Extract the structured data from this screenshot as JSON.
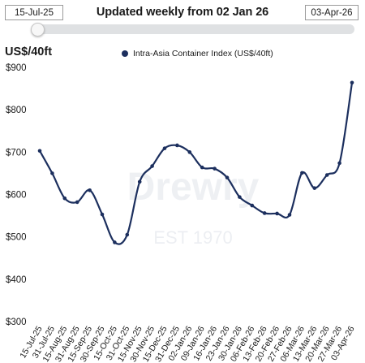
{
  "header": {
    "range_start": "15-Jul-25",
    "range_end": "03-Apr-26",
    "title": "Updated weekly from 02 Jan 26"
  },
  "watermark": {
    "brand": "Drewry",
    "est": "EST 1970"
  },
  "colors": {
    "series": "#1c2f5e",
    "track": "#dfe1e3"
  },
  "chart_data": {
    "type": "line",
    "ylabel": "US$/40ft",
    "ylim": [
      300,
      900
    ],
    "yticks": [
      300,
      400,
      500,
      600,
      700,
      800,
      900
    ],
    "ytick_labels": [
      "$300",
      "$400",
      "$500",
      "$600",
      "$700",
      "$800",
      "$900"
    ],
    "grid": false,
    "legend": "top",
    "categories": [
      "15-Jul-25",
      "31-Jul-25",
      "15-Aug-25",
      "31-Aug-25",
      "15-Sep-25",
      "30-Sep-25",
      "15-Oct-25",
      "31-Oct-25",
      "15-Nov-25",
      "30-Nov-25",
      "15-Dec-25",
      "31-Dec-25",
      "02-Jan-26",
      "09-Jan-26",
      "16-Jan-26",
      "23-Jan-26",
      "30-Jan-26",
      "06-Feb-26",
      "13-Feb-26",
      "20-Feb-26",
      "27-Feb-26",
      "06-Mar-26",
      "13-Mar-26",
      "20-Mar-26",
      "27-Mar-26",
      "03-Apr-26"
    ],
    "series": [
      {
        "name": "Intra-Asia Container Index (US$/40ft)",
        "values": [
          703,
          650,
          591,
          582,
          610,
          553,
          487,
          505,
          630,
          667,
          709,
          716,
          700,
          664,
          661,
          640,
          594,
          574,
          556,
          555,
          552,
          651,
          615,
          646,
          674,
          864
        ]
      }
    ]
  }
}
